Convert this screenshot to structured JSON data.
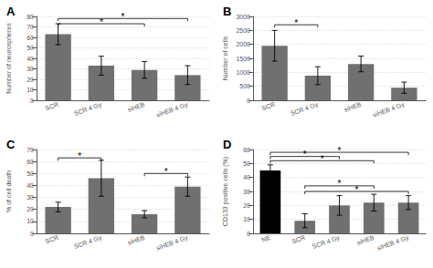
{
  "chart_data": [
    {
      "type": "bar",
      "title": "A",
      "categories": [
        "SCR",
        "SCR 4 Gy",
        "siHEB",
        "siHEB 4 Gy"
      ],
      "values": [
        63,
        33,
        29,
        24
      ],
      "errors": [
        10,
        9,
        8,
        9
      ],
      "color": "#707070",
      "ylabel": "Number of neurospheres",
      "ylim": [
        0,
        80
      ],
      "yticks": [
        0,
        10,
        20,
        30,
        40,
        50,
        60,
        70,
        80
      ],
      "grid": true,
      "annotations": [
        {
          "text": "*",
          "from": "SCR",
          "to": "siHEB",
          "y": 73
        },
        {
          "text": "*",
          "from": "SCR",
          "to": "siHEB 4 Gy",
          "y": 78
        }
      ]
    },
    {
      "type": "bar",
      "title": "B",
      "categories": [
        "SCR",
        "SCR 4 Gy",
        "siHEB",
        "siHEB 4 Gy"
      ],
      "values": [
        1950,
        880,
        1300,
        450
      ],
      "errors": [
        550,
        320,
        280,
        200
      ],
      "color": "#707070",
      "ylabel": "Number of cells",
      "ylim": [
        0,
        3000
      ],
      "yticks": [
        0,
        500,
        1000,
        1500,
        2000,
        2500,
        3000
      ],
      "grid": true,
      "annotations": [
        {
          "text": "*",
          "from": "SCR",
          "to": "SCR 4 Gy",
          "y": 2700
        }
      ]
    },
    {
      "type": "bar",
      "title": "C",
      "categories": [
        "SCR",
        "SCR 4 Gy",
        "siHEB",
        "siHEB 4 Gy"
      ],
      "values": [
        22,
        46,
        16,
        39
      ],
      "errors": [
        4,
        15,
        3,
        8
      ],
      "color": "#707070",
      "ylabel": "% of cell death",
      "ylim": [
        0,
        70
      ],
      "yticks": [
        0,
        10,
        20,
        30,
        40,
        50,
        60,
        70
      ],
      "grid": true,
      "annotations": [
        {
          "text": "*",
          "from": "SCR",
          "to": "SCR 4 Gy",
          "y": 63
        },
        {
          "text": "*",
          "from": "siHEB",
          "to": "siHEB 4 Gy",
          "y": 50
        }
      ]
    },
    {
      "type": "bar",
      "title": "D",
      "categories": [
        "NE",
        "SCR",
        "SCR 4 Gy",
        "siHEB",
        "siHEB 4 Gy"
      ],
      "values": [
        45,
        9,
        20,
        22,
        22
      ],
      "errors": [
        4,
        5,
        7,
        6,
        5
      ],
      "colors": [
        "#000000",
        "#707070",
        "#707070",
        "#707070",
        "#707070"
      ],
      "ylabel": "CD133 positive cells (%)",
      "ylim": [
        0,
        60
      ],
      "yticks": [
        0,
        10,
        20,
        30,
        40,
        50,
        60
      ],
      "grid": true,
      "annotations": [
        {
          "text": "*",
          "from": "NE",
          "to": "SCR 4 Gy",
          "y": 55
        },
        {
          "text": "*",
          "from": "NE",
          "to": "siHEB",
          "y": 52
        },
        {
          "text": "*",
          "from": "NE",
          "to": "siHEB 4 Gy",
          "y": 58
        },
        {
          "text": "*",
          "from": "SCR",
          "to": "siHEB",
          "y": 34
        },
        {
          "text": "*",
          "from": "SCR",
          "to": "siHEB 4 Gy",
          "y": 30
        }
      ]
    }
  ]
}
